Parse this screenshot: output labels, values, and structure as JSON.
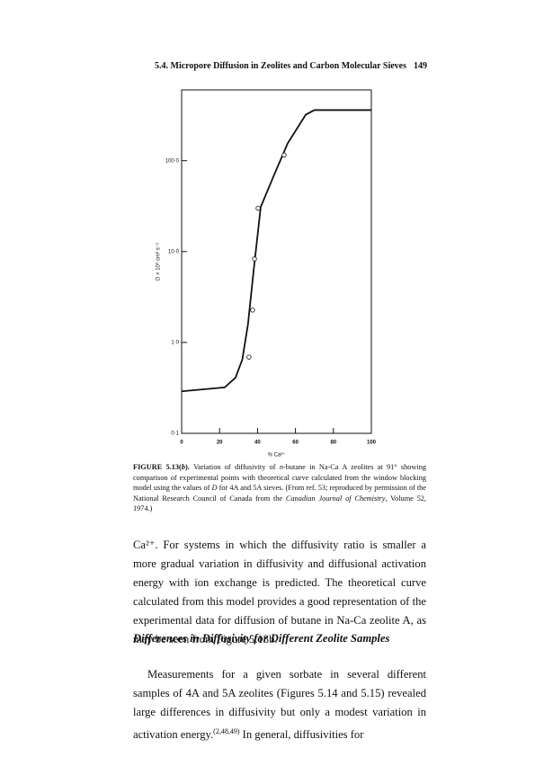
{
  "header": {
    "section": "5.4. Micropore Diffusion in Zeolites and Carbon Molecular Sieves",
    "page": "149"
  },
  "chart_data": {
    "type": "line",
    "log_y": true,
    "ylabel": "D × 10⁹ cm² s⁻¹",
    "xlabel": "% Ca²⁺",
    "xlim": [
      0,
      100
    ],
    "xticks": [
      0,
      20,
      40,
      60,
      80,
      100
    ],
    "ylim": [
      0.1,
      600
    ],
    "yticks": [
      {
        "value": 0.1,
        "label": "0·1"
      },
      {
        "value": 1,
        "label": "1·0"
      },
      {
        "value": 10,
        "label": "10·0"
      },
      {
        "value": 100,
        "label": "100·0"
      }
    ],
    "color": "#111111",
    "curve": {
      "x": [
        0,
        22.7,
        28.4,
        32,
        35,
        38,
        41.7,
        48.8,
        55.9,
        65.4,
        70,
        100
      ],
      "values": [
        0.29,
        0.32,
        0.41,
        0.65,
        1.6,
        6.3,
        31,
        70,
        155,
        320,
        360,
        360
      ]
    },
    "points": {
      "x": [
        35.5,
        37.4,
        38.4,
        40.3,
        54
      ],
      "values": [
        0.69,
        2.27,
        8.3,
        29.9,
        115
      ]
    }
  },
  "caption": {
    "parts": [
      "FIGURE 5.13(",
      "b",
      "). ",
      "Variation of diffusivity of ",
      "n",
      "-butane in Na-Ca A zeolites at 91° showing comparison of experimental points with theoretical curve calculated from the window blocking model using the values of ",
      "D",
      " for 4A and 5A sieves. (From ref. 53; reproduced by permission of the National Research Council of Canada from the ",
      "Canadian Journal of Chemistry",
      ", Volume 52, 1974.)"
    ]
  },
  "body": {
    "paragraph1": "Ca²⁺. For systems in which the diffusivity ratio is smaller a more gradual variation in diffusivity and diffusional activation energy with ion exchange is predicted. The theoretical curve calculated from this model provides a good representation of the experimental data for diffusion of butane in Na-Ca zeolite A, as may be seen from Figure 5.13b.",
    "heading": "Differences in Diffusivity for Different Zeolite Samples",
    "paragraph2": [
      "Measurements for a given sorbate in several different samples of 4A and 5A zeolites (Figures 5.14 and 5.15) revealed large differences in diffusivity but only a modest variation in activation energy.",
      "(2,48,49)",
      " In general, diffusivities for"
    ]
  }
}
